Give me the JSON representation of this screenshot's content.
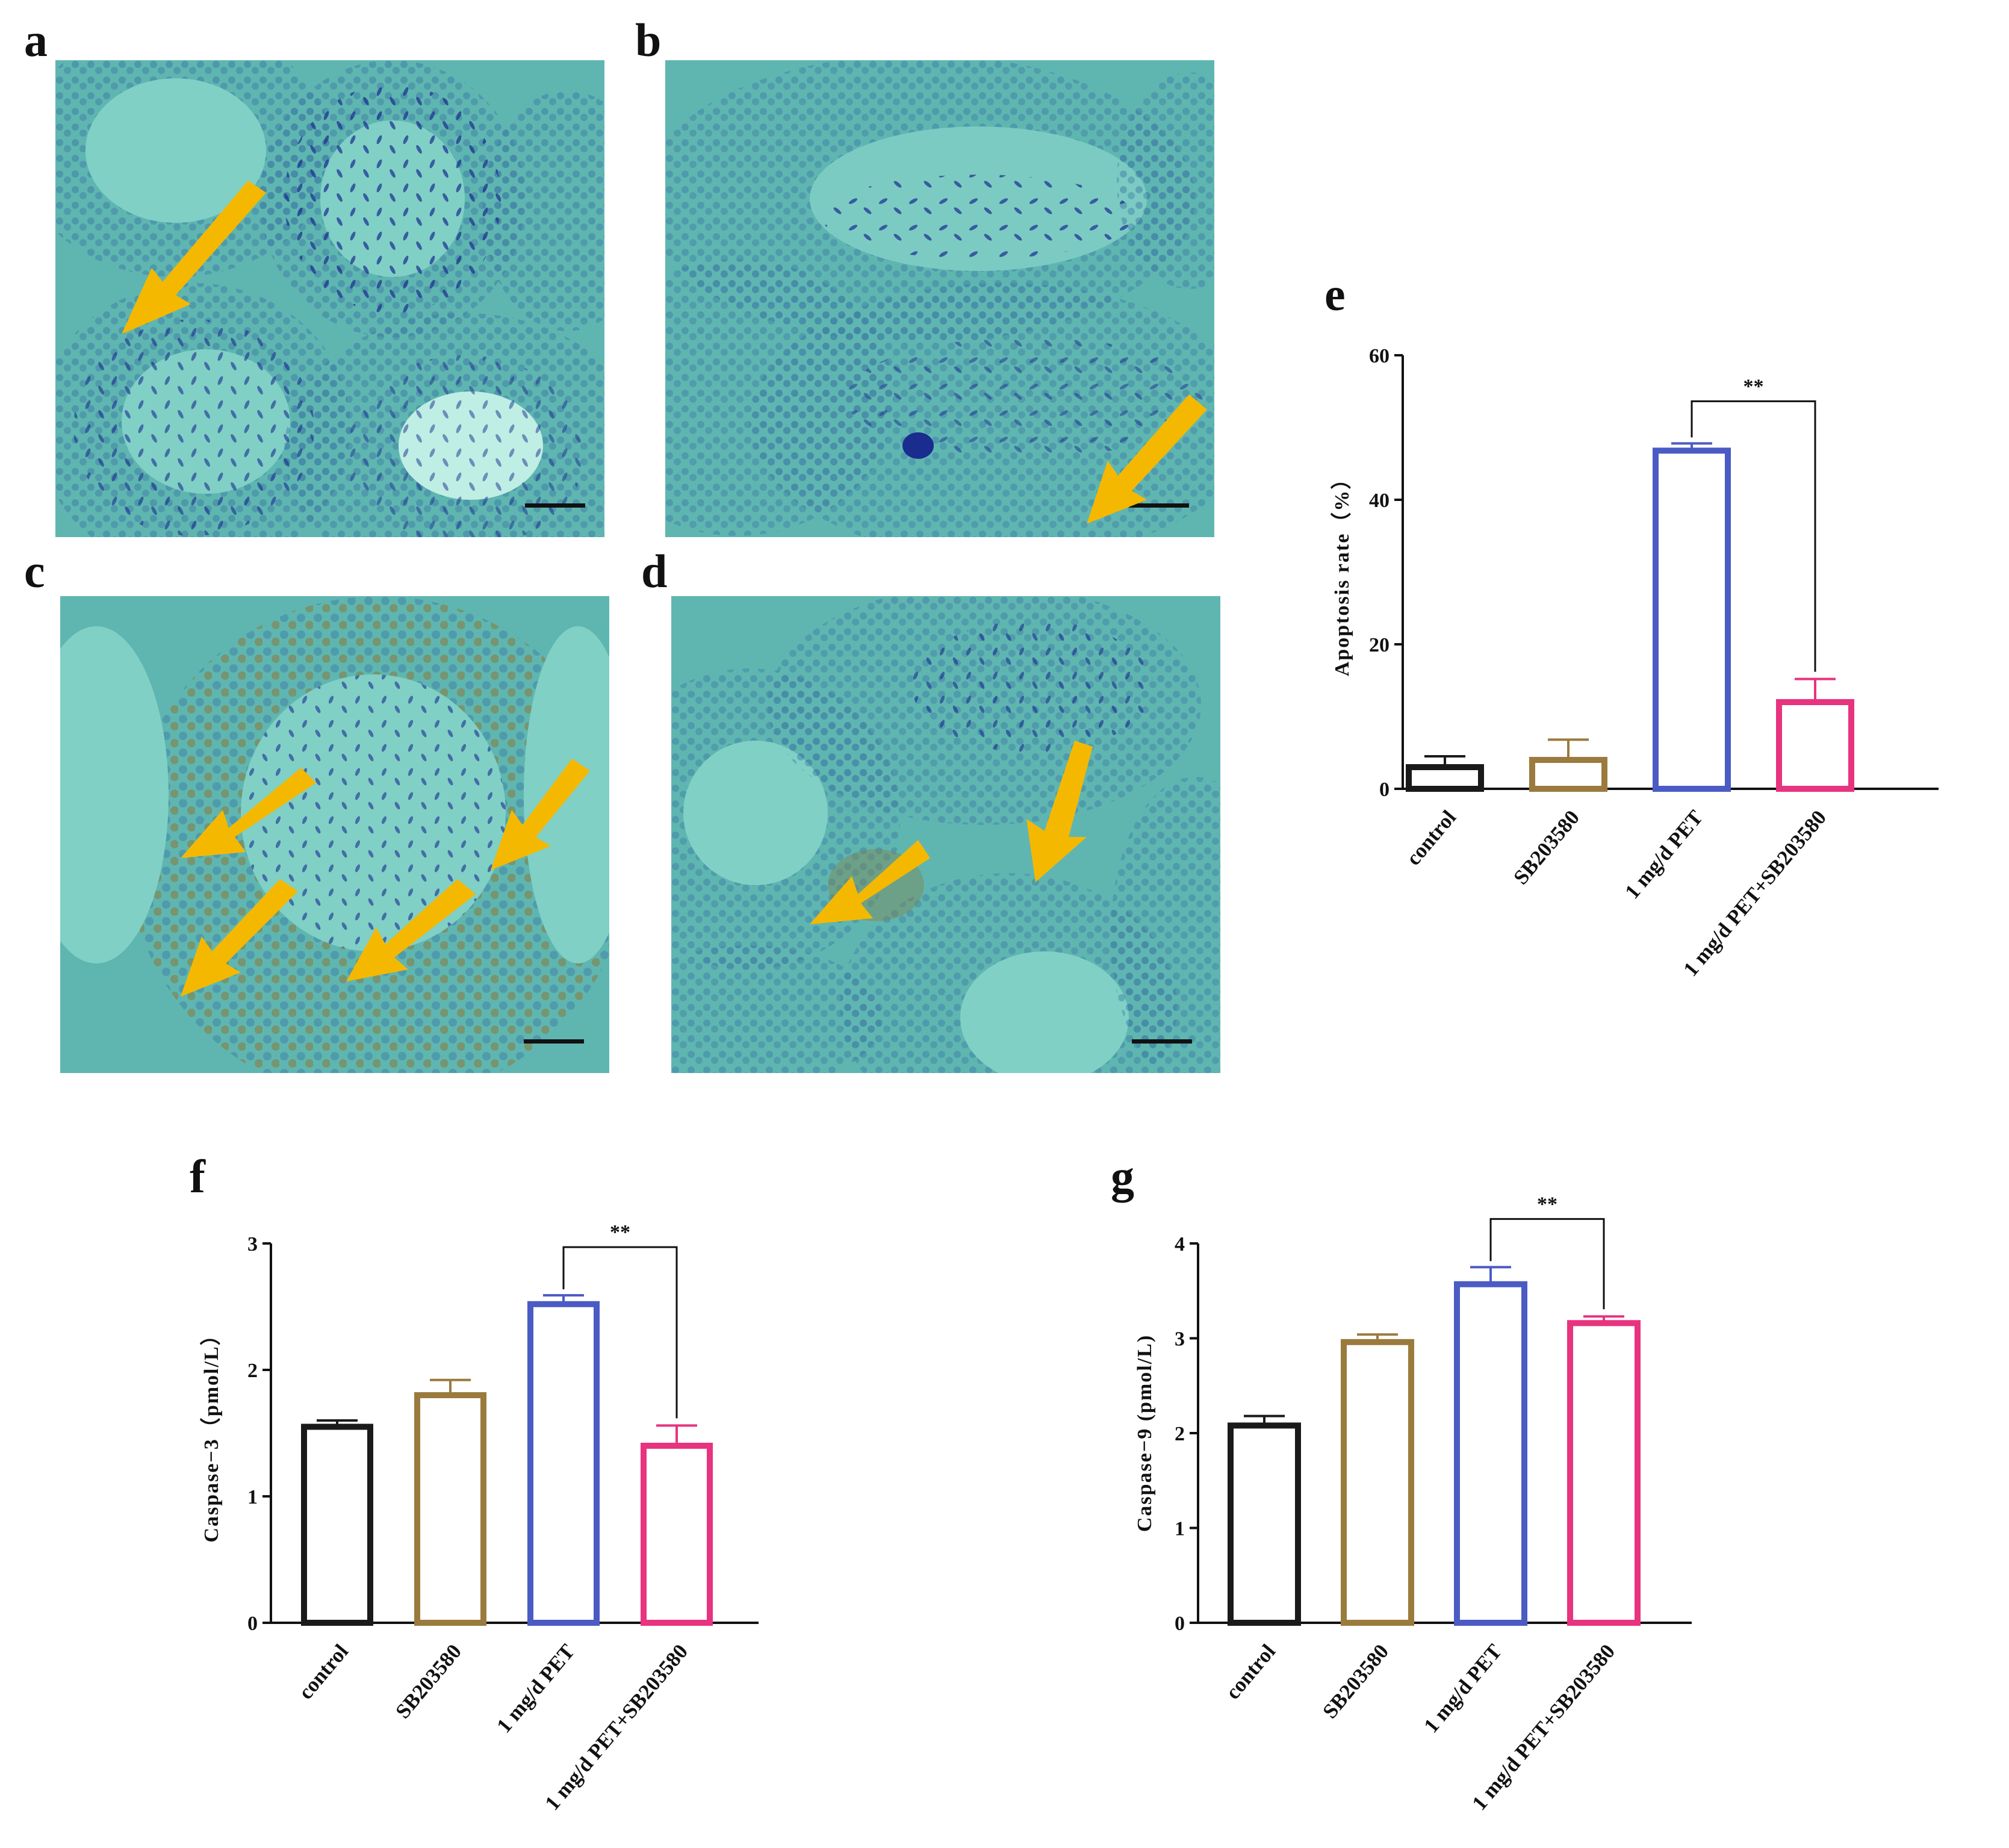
{
  "panels": {
    "a": {
      "letter": "a"
    },
    "b": {
      "letter": "b"
    },
    "c": {
      "letter": "c"
    },
    "d": {
      "letter": "d"
    },
    "e": {
      "letter": "e"
    },
    "f": {
      "letter": "f"
    },
    "g": {
      "letter": "g"
    }
  },
  "micrographs": [
    {
      "panel": "a",
      "arrow_count": 1,
      "stain": "blue (hematoxylin)",
      "brown_nuclei": false
    },
    {
      "panel": "b",
      "arrow_count": 1,
      "stain": "blue (hematoxylin)",
      "brown_nuclei": false
    },
    {
      "panel": "c",
      "arrow_count": 4,
      "stain": "blue with brown TUNEL-positive nuclei",
      "brown_nuclei": true
    },
    {
      "panel": "d",
      "arrow_count": 2,
      "stain": "blue with sparse brown nuclei",
      "brown_nuclei": true
    }
  ],
  "colors": {
    "tissue_background": "#63bdb7",
    "lumen": "#7fcfc6",
    "nuclei": "#3a74a0",
    "sperm": "#1a2a8a",
    "brown": "#8a7a3a",
    "arrow": "#f5b800",
    "control": "#1a1a1a",
    "SB203580": "#9b7a3e",
    "PET": "#4b5bc4",
    "PET_SB": "#e8337f"
  },
  "chart_data": [
    {
      "id": "e",
      "type": "bar",
      "categories": [
        "control",
        "SB203580",
        "1 mg/d PET",
        "1 mg/d PET+SB203580"
      ],
      "values": [
        3.0,
        4.0,
        46.8,
        12.0
      ],
      "errors": [
        1.5,
        2.8,
        1.0,
        3.2
      ],
      "ylabel": "Apoptosis rate（%）",
      "ylim": [
        0,
        60
      ],
      "yticks": [
        0,
        20,
        40,
        60
      ],
      "significance": {
        "from": 2,
        "to": 3,
        "label": "**"
      }
    },
    {
      "id": "f",
      "type": "bar",
      "categories": [
        "control",
        "SB203580",
        "1 mg/d PET",
        "1 mg/d PET+SB203580"
      ],
      "values": [
        1.55,
        1.8,
        2.52,
        1.4
      ],
      "errors": [
        0.05,
        0.12,
        0.07,
        0.16
      ],
      "ylabel": "Caspase−3（pmol/L）",
      "ylim": [
        0,
        3
      ],
      "yticks": [
        0,
        1,
        2,
        3
      ],
      "significance": {
        "from": 2,
        "to": 3,
        "label": "**"
      }
    },
    {
      "id": "g",
      "type": "bar",
      "categories": [
        "control",
        "SB203580",
        "1 mg/d PET",
        "1 mg/d PET+SB203580"
      ],
      "values": [
        2.08,
        2.96,
        3.57,
        3.16
      ],
      "errors": [
        0.1,
        0.08,
        0.18,
        0.07
      ],
      "ylabel": "Caspase−9  (pmol/L)",
      "ylim": [
        0,
        4
      ],
      "yticks": [
        0,
        1,
        2,
        3,
        4
      ],
      "significance": {
        "from": 2,
        "to": 3,
        "label": "**"
      }
    }
  ]
}
